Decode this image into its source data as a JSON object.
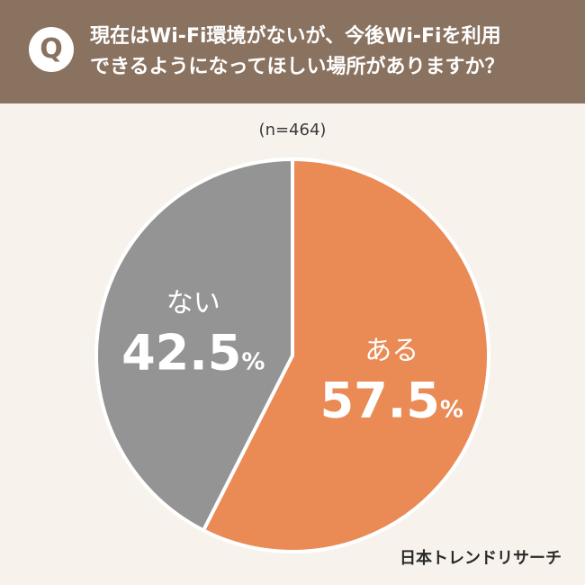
{
  "header": {
    "badge": "Q",
    "question_line1": "現在はWi-Fi環境がないが、今後Wi-Fiを利用",
    "question_line2": "できるようになってほしい場所がありますか？",
    "background": "#8a7260"
  },
  "sample_size": "(n=464)",
  "brand": "日本トレンドリサーチ",
  "chart_data": {
    "type": "pie",
    "categories": [
      "ある",
      "ない"
    ],
    "values": [
      57.5,
      42.5
    ],
    "value_labels": [
      "57.5",
      "42.5"
    ],
    "unit": "%",
    "colors": [
      "#ea8a55",
      "#949494"
    ]
  }
}
